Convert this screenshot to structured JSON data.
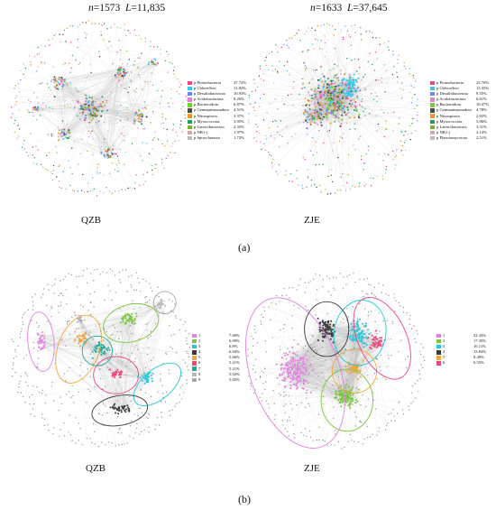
{
  "colors": {
    "background": "#ffffff",
    "edge": "#bdbdbd",
    "node": "#8a8a8a"
  },
  "panels": [
    {
      "label": "(a)",
      "networks": [
        {
          "name": "QZB",
          "stats": {
            "n_label": "n",
            "n_value": "=1573",
            "l_label": "L",
            "l_value": "=11,835"
          },
          "legend": [
            {
              "label": "p Proteobacteria",
              "pct": "27.72%",
              "color": "#f0467a"
            },
            {
              "label": "p Chloroflexi",
              "pct": "11.82%",
              "color": "#36c8ee"
            },
            {
              "label": "p Desulfobacterota",
              "pct": "10.93%",
              "color": "#6a86ff"
            },
            {
              "label": "p Acidobacteriota",
              "pct": "8.26%",
              "color": "#e77fd3"
            },
            {
              "label": "p Bacteroidota",
              "pct": "6.87%",
              "color": "#6fd42a"
            },
            {
              "label": "p Gemmatimonadota",
              "pct": "4.51%",
              "color": "#4a4a4a"
            },
            {
              "label": "p Nitrospirota",
              "pct": "3.37%",
              "color": "#f09a23"
            },
            {
              "label": "p Myxococcota",
              "pct": "3.05%",
              "color": "#1aa15f"
            },
            {
              "label": "p Latescibacterota",
              "pct": "2.35%",
              "color": "#7ab32a"
            },
            {
              "label": "p NB1-j",
              "pct": "1.97%",
              "color": "#d8a6a8"
            },
            {
              "label": "p Spirochaetota",
              "pct": "1.72%",
              "color": "#bdbdbd"
            }
          ]
        },
        {
          "name": "ZJE",
          "stats": {
            "n_label": "n",
            "n_value": "=1633",
            "l_label": "L",
            "l_value": "=37,645"
          },
          "legend": [
            {
              "label": "p Proteobacteria",
              "pct": "23.70%",
              "color": "#f0467a"
            },
            {
              "label": "p Chloroflexi",
              "pct": "13.35%",
              "color": "#36c8ee"
            },
            {
              "label": "p Desulfobacterota",
              "pct": "9.55%",
              "color": "#6a86ff"
            },
            {
              "label": "p Acidobacteriota",
              "pct": "6.61%",
              "color": "#e77fd3"
            },
            {
              "label": "p Bacteroidota",
              "pct": "10.47%",
              "color": "#6fd42a"
            },
            {
              "label": "p Gemmatimonadota",
              "pct": "4.78%",
              "color": "#4a4a4a"
            },
            {
              "label": "p Nitrospirota",
              "pct": "2.82%",
              "color": "#f09a23"
            },
            {
              "label": "p Myxococcota",
              "pct": "3.06%",
              "color": "#1aa15f"
            },
            {
              "label": "p Latescibacterota",
              "pct": "3.31%",
              "color": "#7ab32a"
            },
            {
              "label": "p NB1-j",
              "pct": "2.14%",
              "color": "#d8a6a8"
            },
            {
              "label": "p Planctomycetota",
              "pct": "2.51%",
              "color": "#bdbdbd"
            }
          ]
        }
      ]
    },
    {
      "label": "(b)",
      "networks": [
        {
          "name": "QZB",
          "legend": [
            {
              "label": "1",
              "pct": "7.69%",
              "color": "#e77fe5"
            },
            {
              "label": "2",
              "pct": "6.99%",
              "color": "#79c63a"
            },
            {
              "label": "3",
              "pct": "6.8%",
              "color": "#22c8dc"
            },
            {
              "label": "4",
              "pct": "6.04%",
              "color": "#3a3a3a"
            },
            {
              "label": "5",
              "pct": "5.66%",
              "color": "#f3a73a"
            },
            {
              "label": "6",
              "pct": "5.21%",
              "color": "#f0467a"
            },
            {
              "label": "7",
              "pct": "5.21%",
              "color": "#1ea89a"
            },
            {
              "label": "8",
              "pct": "5.02%",
              "color": "#b8b8b8"
            },
            {
              "label": "9",
              "pct": "5.02%",
              "color": "#a8a8a8"
            }
          ]
        },
        {
          "name": "ZJE",
          "legend": [
            {
              "label": "1",
              "pct": "32.33%",
              "color": "#e77fe5"
            },
            {
              "label": "2",
              "pct": "17.35%",
              "color": "#79c63a"
            },
            {
              "label": "3",
              "pct": "16.11%",
              "color": "#22c8dc"
            },
            {
              "label": "4",
              "pct": "13.84%",
              "color": "#3a3a3a"
            },
            {
              "label": "5",
              "pct": "8.49%",
              "color": "#f3a73a"
            },
            {
              "label": "6",
              "pct": "6.55%",
              "color": "#f0467a"
            }
          ]
        }
      ]
    }
  ]
}
